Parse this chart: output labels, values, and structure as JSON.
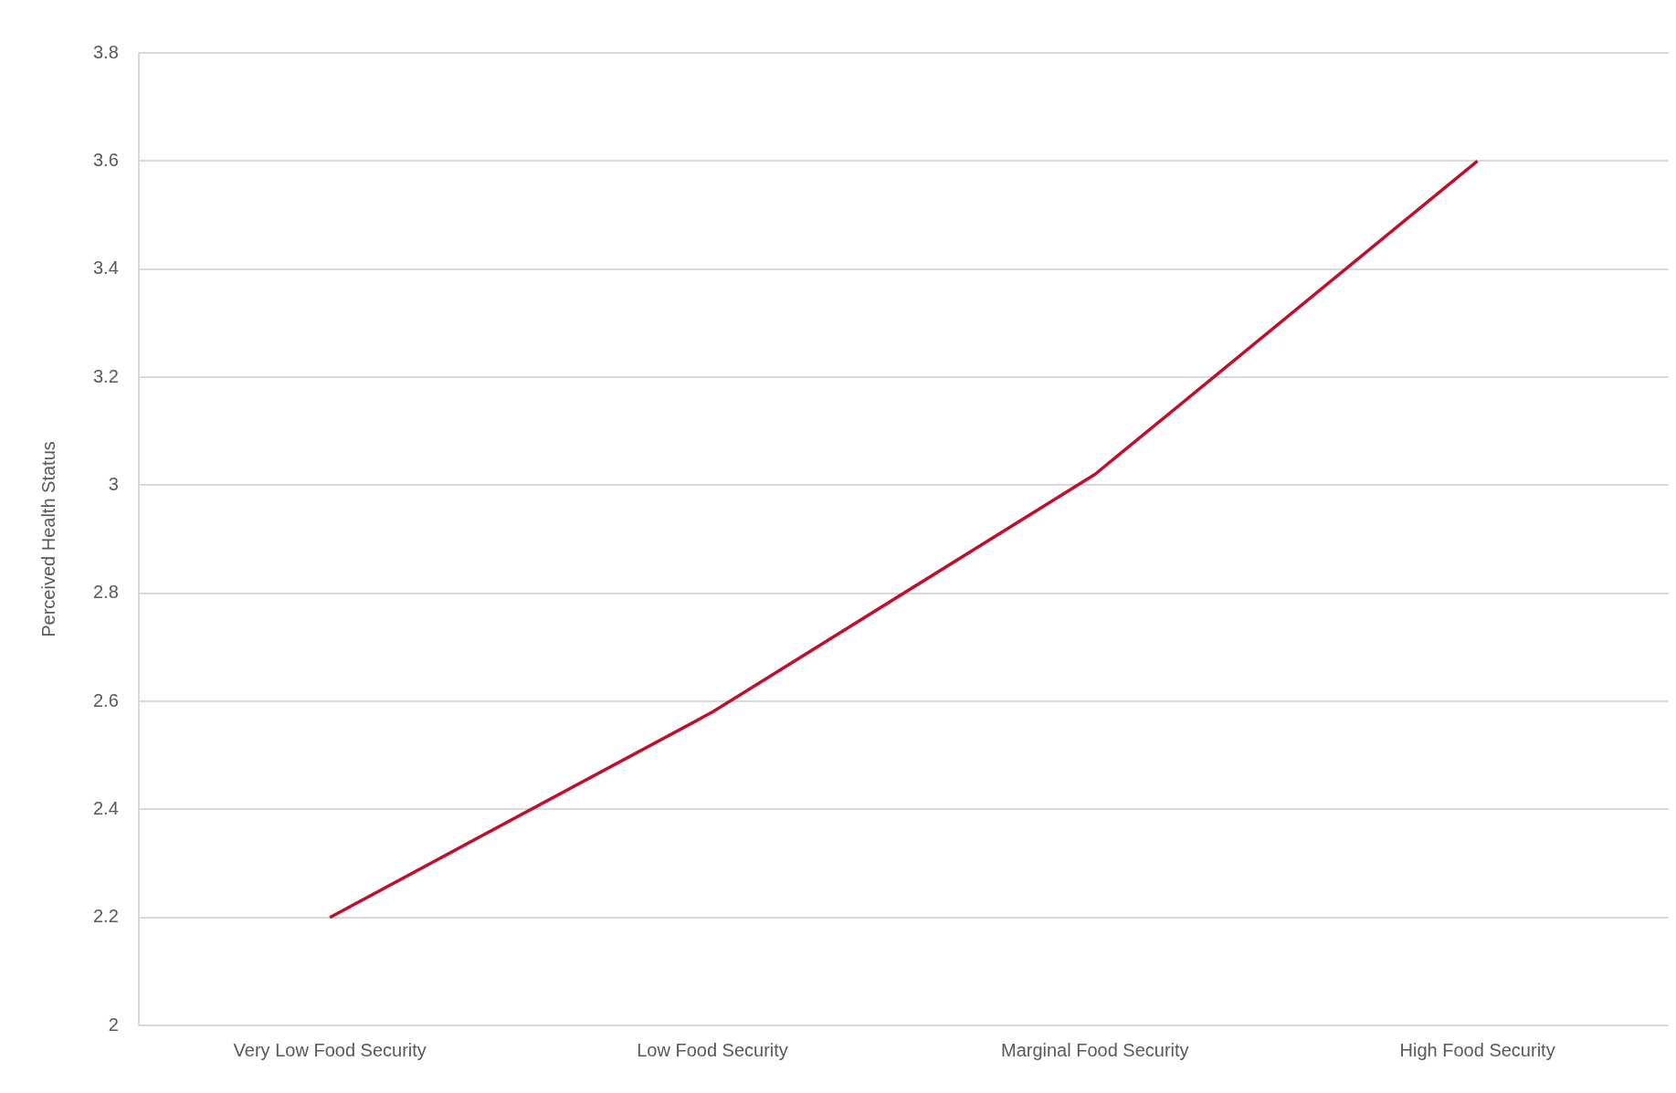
{
  "chart_data": {
    "type": "line",
    "ylabel": "Perceived Health Status",
    "categories": [
      "Very Low Food Security",
      "Low Food Security",
      "Marginal Food Security",
      "High Food Security"
    ],
    "series": [
      {
        "color": "#c00f2d",
        "values": [
          2.2,
          2.58,
          3.02,
          3.6
        ]
      }
    ],
    "ylim": [
      2,
      3.8
    ],
    "yticks": [
      2,
      2.2,
      2.4,
      2.6,
      2.8,
      3,
      3.2,
      3.4,
      3.6,
      3.8
    ],
    "grid": "y",
    "legend": false
  }
}
